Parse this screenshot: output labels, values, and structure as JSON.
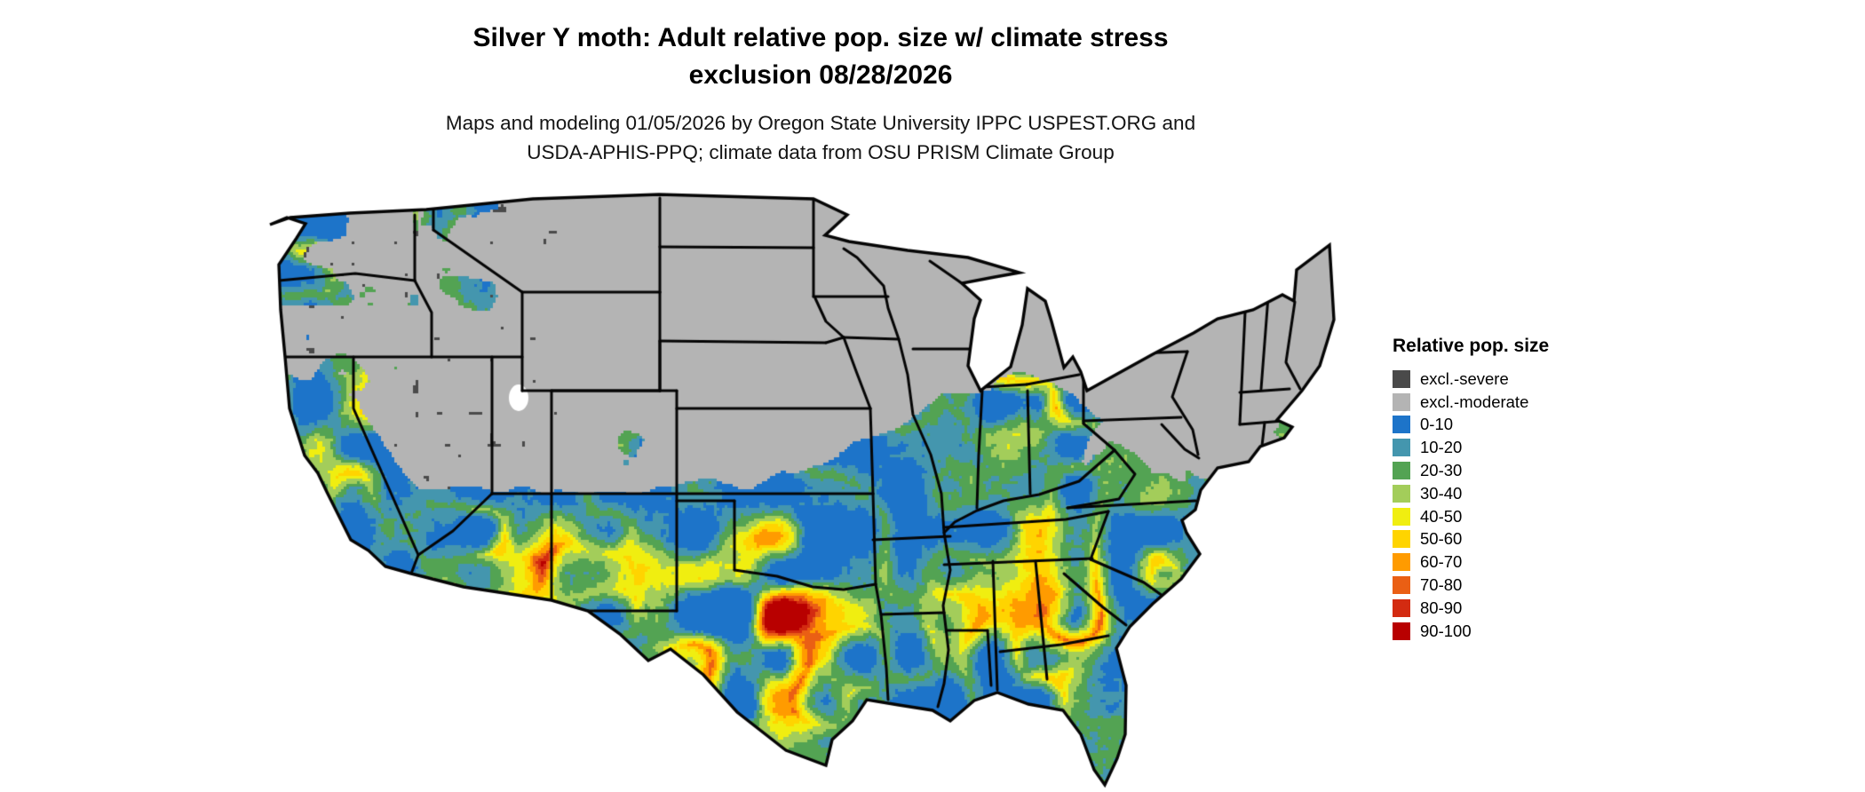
{
  "header": {
    "title_line1": "Silver Y moth: Adult relative pop. size w/ climate stress",
    "title_line2": "exclusion 08/28/2026",
    "subtitle_line1": "Maps and modeling 01/05/2026 by Oregon State University IPPC USPEST.ORG and",
    "subtitle_line2": "USDA-APHIS-PPQ; climate data from OSU PRISM Climate Group"
  },
  "map": {
    "region": "contiguous United States",
    "kind": "raster choropleth with state boundaries"
  },
  "legend": {
    "title": "Relative pop. size",
    "entries": [
      {
        "label": "excl.-severe",
        "color": "#4a4a4a"
      },
      {
        "label": "excl.-moderate",
        "color": "#b4b4b4"
      },
      {
        "label": "0-10",
        "color": "#1d74c9"
      },
      {
        "label": "10-20",
        "color": "#4496ae"
      },
      {
        "label": "20-30",
        "color": "#53a353"
      },
      {
        "label": "30-40",
        "color": "#a3cd5a"
      },
      {
        "label": "40-50",
        "color": "#f0ee10"
      },
      {
        "label": "50-60",
        "color": "#ffd400"
      },
      {
        "label": "60-70",
        "color": "#ff9b00"
      },
      {
        "label": "70-80",
        "color": "#ea5f14"
      },
      {
        "label": "80-90",
        "color": "#d32b11"
      },
      {
        "label": "90-100",
        "color": "#b80000"
      }
    ]
  }
}
